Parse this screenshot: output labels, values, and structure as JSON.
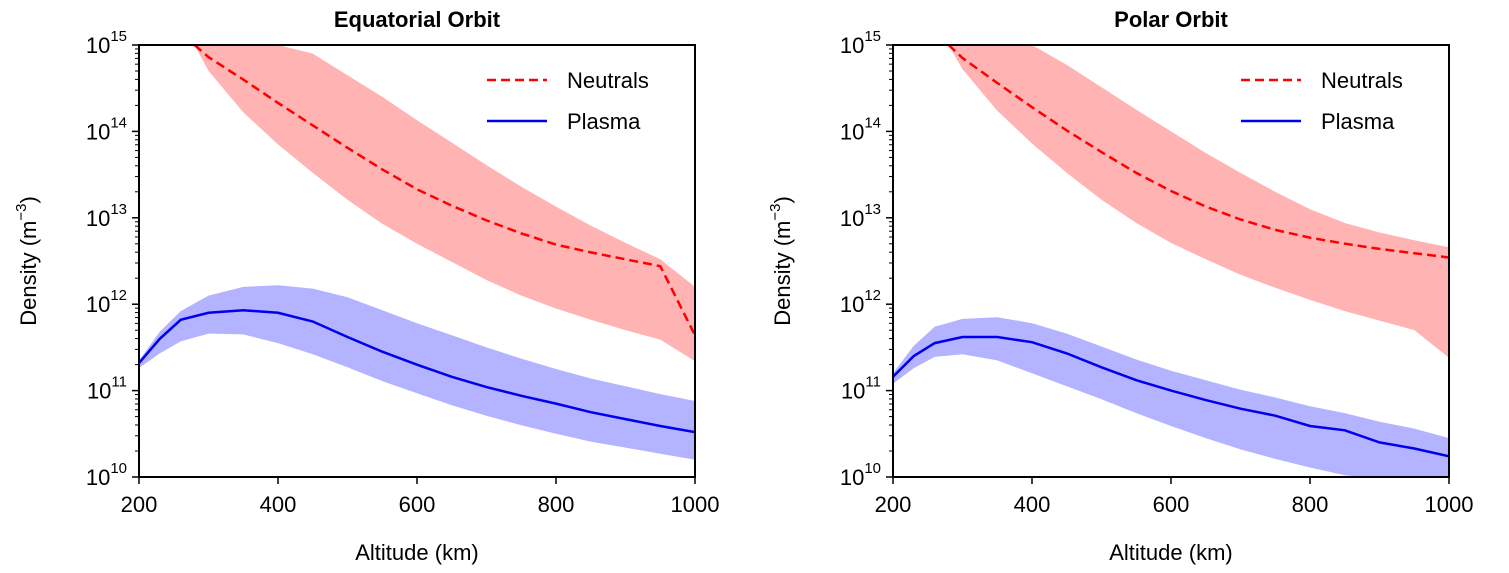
{
  "chart_data": [
    {
      "type": "line",
      "title": "Equatorial Orbit",
      "xlabel": "Altitude (km)",
      "ylabel_main": "Density (m",
      "ylabel_sup": "−3",
      "ylabel_close": ")",
      "xlim": [
        200,
        1000
      ],
      "ylim_exp": [
        10,
        15
      ],
      "yscale": "log",
      "xticks": [
        {
          "value": 200,
          "label": "200"
        },
        {
          "value": 400,
          "label": "400"
        },
        {
          "value": 600,
          "label": "600"
        },
        {
          "value": 800,
          "label": "800"
        },
        {
          "value": 1000,
          "label": "1000"
        }
      ],
      "yticks": [
        {
          "exp": 10,
          "base": "10",
          "sup": "10"
        },
        {
          "exp": 11,
          "base": "10",
          "sup": "11"
        },
        {
          "exp": 12,
          "base": "10",
          "sup": "12"
        },
        {
          "exp": 13,
          "base": "10",
          "sup": "13"
        },
        {
          "exp": 14,
          "base": "10",
          "sup": "14"
        },
        {
          "exp": 15,
          "base": "10",
          "sup": "15"
        }
      ],
      "legend": {
        "placement": "top-right"
      },
      "series": [
        {
          "name": "Neutrals",
          "color": "#ff0000",
          "band_color": "#ff9999",
          "style": "dashed",
          "x": [
            280,
            300,
            350,
            400,
            450,
            500,
            550,
            600,
            650,
            700,
            750,
            800,
            850,
            900,
            950,
            1000
          ],
          "y_exp": [
            15.0,
            14.86,
            14.6,
            14.33,
            14.07,
            13.81,
            13.56,
            13.33,
            13.14,
            12.97,
            12.82,
            12.69,
            12.6,
            12.52,
            12.44,
            11.64
          ],
          "upper_exp": [
            15.0,
            15.0,
            15.0,
            15.0,
            14.9,
            14.65,
            14.4,
            14.13,
            13.87,
            13.61,
            13.36,
            13.13,
            12.91,
            12.71,
            12.52,
            12.2
          ],
          "lower_exp": [
            15.0,
            14.7,
            14.22,
            13.85,
            13.52,
            13.21,
            12.93,
            12.7,
            12.49,
            12.28,
            12.1,
            11.95,
            11.82,
            11.7,
            11.59,
            11.34
          ]
        },
        {
          "name": "Plasma",
          "color": "#0000ee",
          "band_color": "#9999ff",
          "style": "solid",
          "x": [
            200,
            230,
            260,
            300,
            350,
            400,
            450,
            500,
            550,
            600,
            650,
            700,
            750,
            800,
            850,
            900,
            950,
            1000
          ],
          "y_exp": [
            11.32,
            11.6,
            11.82,
            11.9,
            11.93,
            11.9,
            11.8,
            11.62,
            11.45,
            11.3,
            11.16,
            11.04,
            10.94,
            10.85,
            10.75,
            10.67,
            10.59,
            10.52
          ],
          "upper_exp": [
            11.35,
            11.68,
            11.92,
            12.1,
            12.2,
            12.22,
            12.18,
            12.08,
            11.93,
            11.78,
            11.64,
            11.5,
            11.37,
            11.25,
            11.14,
            11.05,
            10.96,
            10.88
          ],
          "lower_exp": [
            11.26,
            11.43,
            11.57,
            11.66,
            11.65,
            11.55,
            11.42,
            11.27,
            11.11,
            10.97,
            10.83,
            10.71,
            10.6,
            10.5,
            10.41,
            10.34,
            10.27,
            10.2
          ]
        }
      ]
    },
    {
      "type": "line",
      "title": "Polar Orbit",
      "xlabel": "Altitude (km)",
      "ylabel_main": "Density (m",
      "ylabel_sup": "−3",
      "ylabel_close": ")",
      "xlim": [
        200,
        1000
      ],
      "ylim_exp": [
        10,
        15
      ],
      "yscale": "log",
      "xticks": [
        {
          "value": 200,
          "label": "200"
        },
        {
          "value": 400,
          "label": "400"
        },
        {
          "value": 600,
          "label": "600"
        },
        {
          "value": 800,
          "label": "800"
        },
        {
          "value": 1000,
          "label": "1000"
        }
      ],
      "yticks": [
        {
          "exp": 10,
          "base": "10",
          "sup": "10"
        },
        {
          "exp": 11,
          "base": "10",
          "sup": "11"
        },
        {
          "exp": 12,
          "base": "10",
          "sup": "12"
        },
        {
          "exp": 13,
          "base": "10",
          "sup": "13"
        },
        {
          "exp": 14,
          "base": "10",
          "sup": "14"
        },
        {
          "exp": 15,
          "base": "10",
          "sup": "15"
        }
      ],
      "legend": {
        "placement": "top-right"
      },
      "series": [
        {
          "name": "Neutrals",
          "color": "#ff0000",
          "band_color": "#ff9999",
          "style": "dashed",
          "x": [
            280,
            300,
            350,
            400,
            450,
            500,
            550,
            600,
            650,
            700,
            750,
            800,
            850,
            900,
            950,
            1000
          ],
          "y_exp": [
            15.0,
            14.85,
            14.56,
            14.28,
            14.01,
            13.76,
            13.52,
            13.31,
            13.13,
            12.98,
            12.86,
            12.77,
            12.7,
            12.64,
            12.59,
            12.54
          ],
          "upper_exp": [
            15.0,
            15.0,
            15.0,
            15.0,
            14.77,
            14.51,
            14.25,
            14.0,
            13.75,
            13.52,
            13.3,
            13.1,
            12.94,
            12.83,
            12.74,
            12.66
          ],
          "lower_exp": [
            15.0,
            14.72,
            14.24,
            13.86,
            13.52,
            13.21,
            12.94,
            12.71,
            12.52,
            12.34,
            12.19,
            12.05,
            11.92,
            11.81,
            11.7,
            11.38
          ]
        },
        {
          "name": "Plasma",
          "color": "#0000ee",
          "band_color": "#9999ff",
          "style": "solid",
          "x": [
            200,
            230,
            260,
            300,
            350,
            400,
            450,
            500,
            550,
            600,
            650,
            700,
            750,
            800,
            850,
            900,
            950,
            1000
          ],
          "y_exp": [
            11.16,
            11.4,
            11.55,
            11.62,
            11.62,
            11.56,
            11.43,
            11.27,
            11.12,
            11.0,
            10.89,
            10.79,
            10.71,
            10.59,
            10.54,
            10.4,
            10.33,
            10.24
          ],
          "upper_exp": [
            11.2,
            11.52,
            11.74,
            11.83,
            11.85,
            11.78,
            11.66,
            11.51,
            11.36,
            11.23,
            11.12,
            11.01,
            10.92,
            10.82,
            10.74,
            10.64,
            10.56,
            10.45
          ],
          "lower_exp": [
            11.08,
            11.26,
            11.39,
            11.42,
            11.35,
            11.2,
            11.05,
            10.9,
            10.74,
            10.59,
            10.45,
            10.32,
            10.21,
            10.11,
            10.02,
            9.98,
            9.98,
            9.98
          ]
        }
      ]
    }
  ]
}
